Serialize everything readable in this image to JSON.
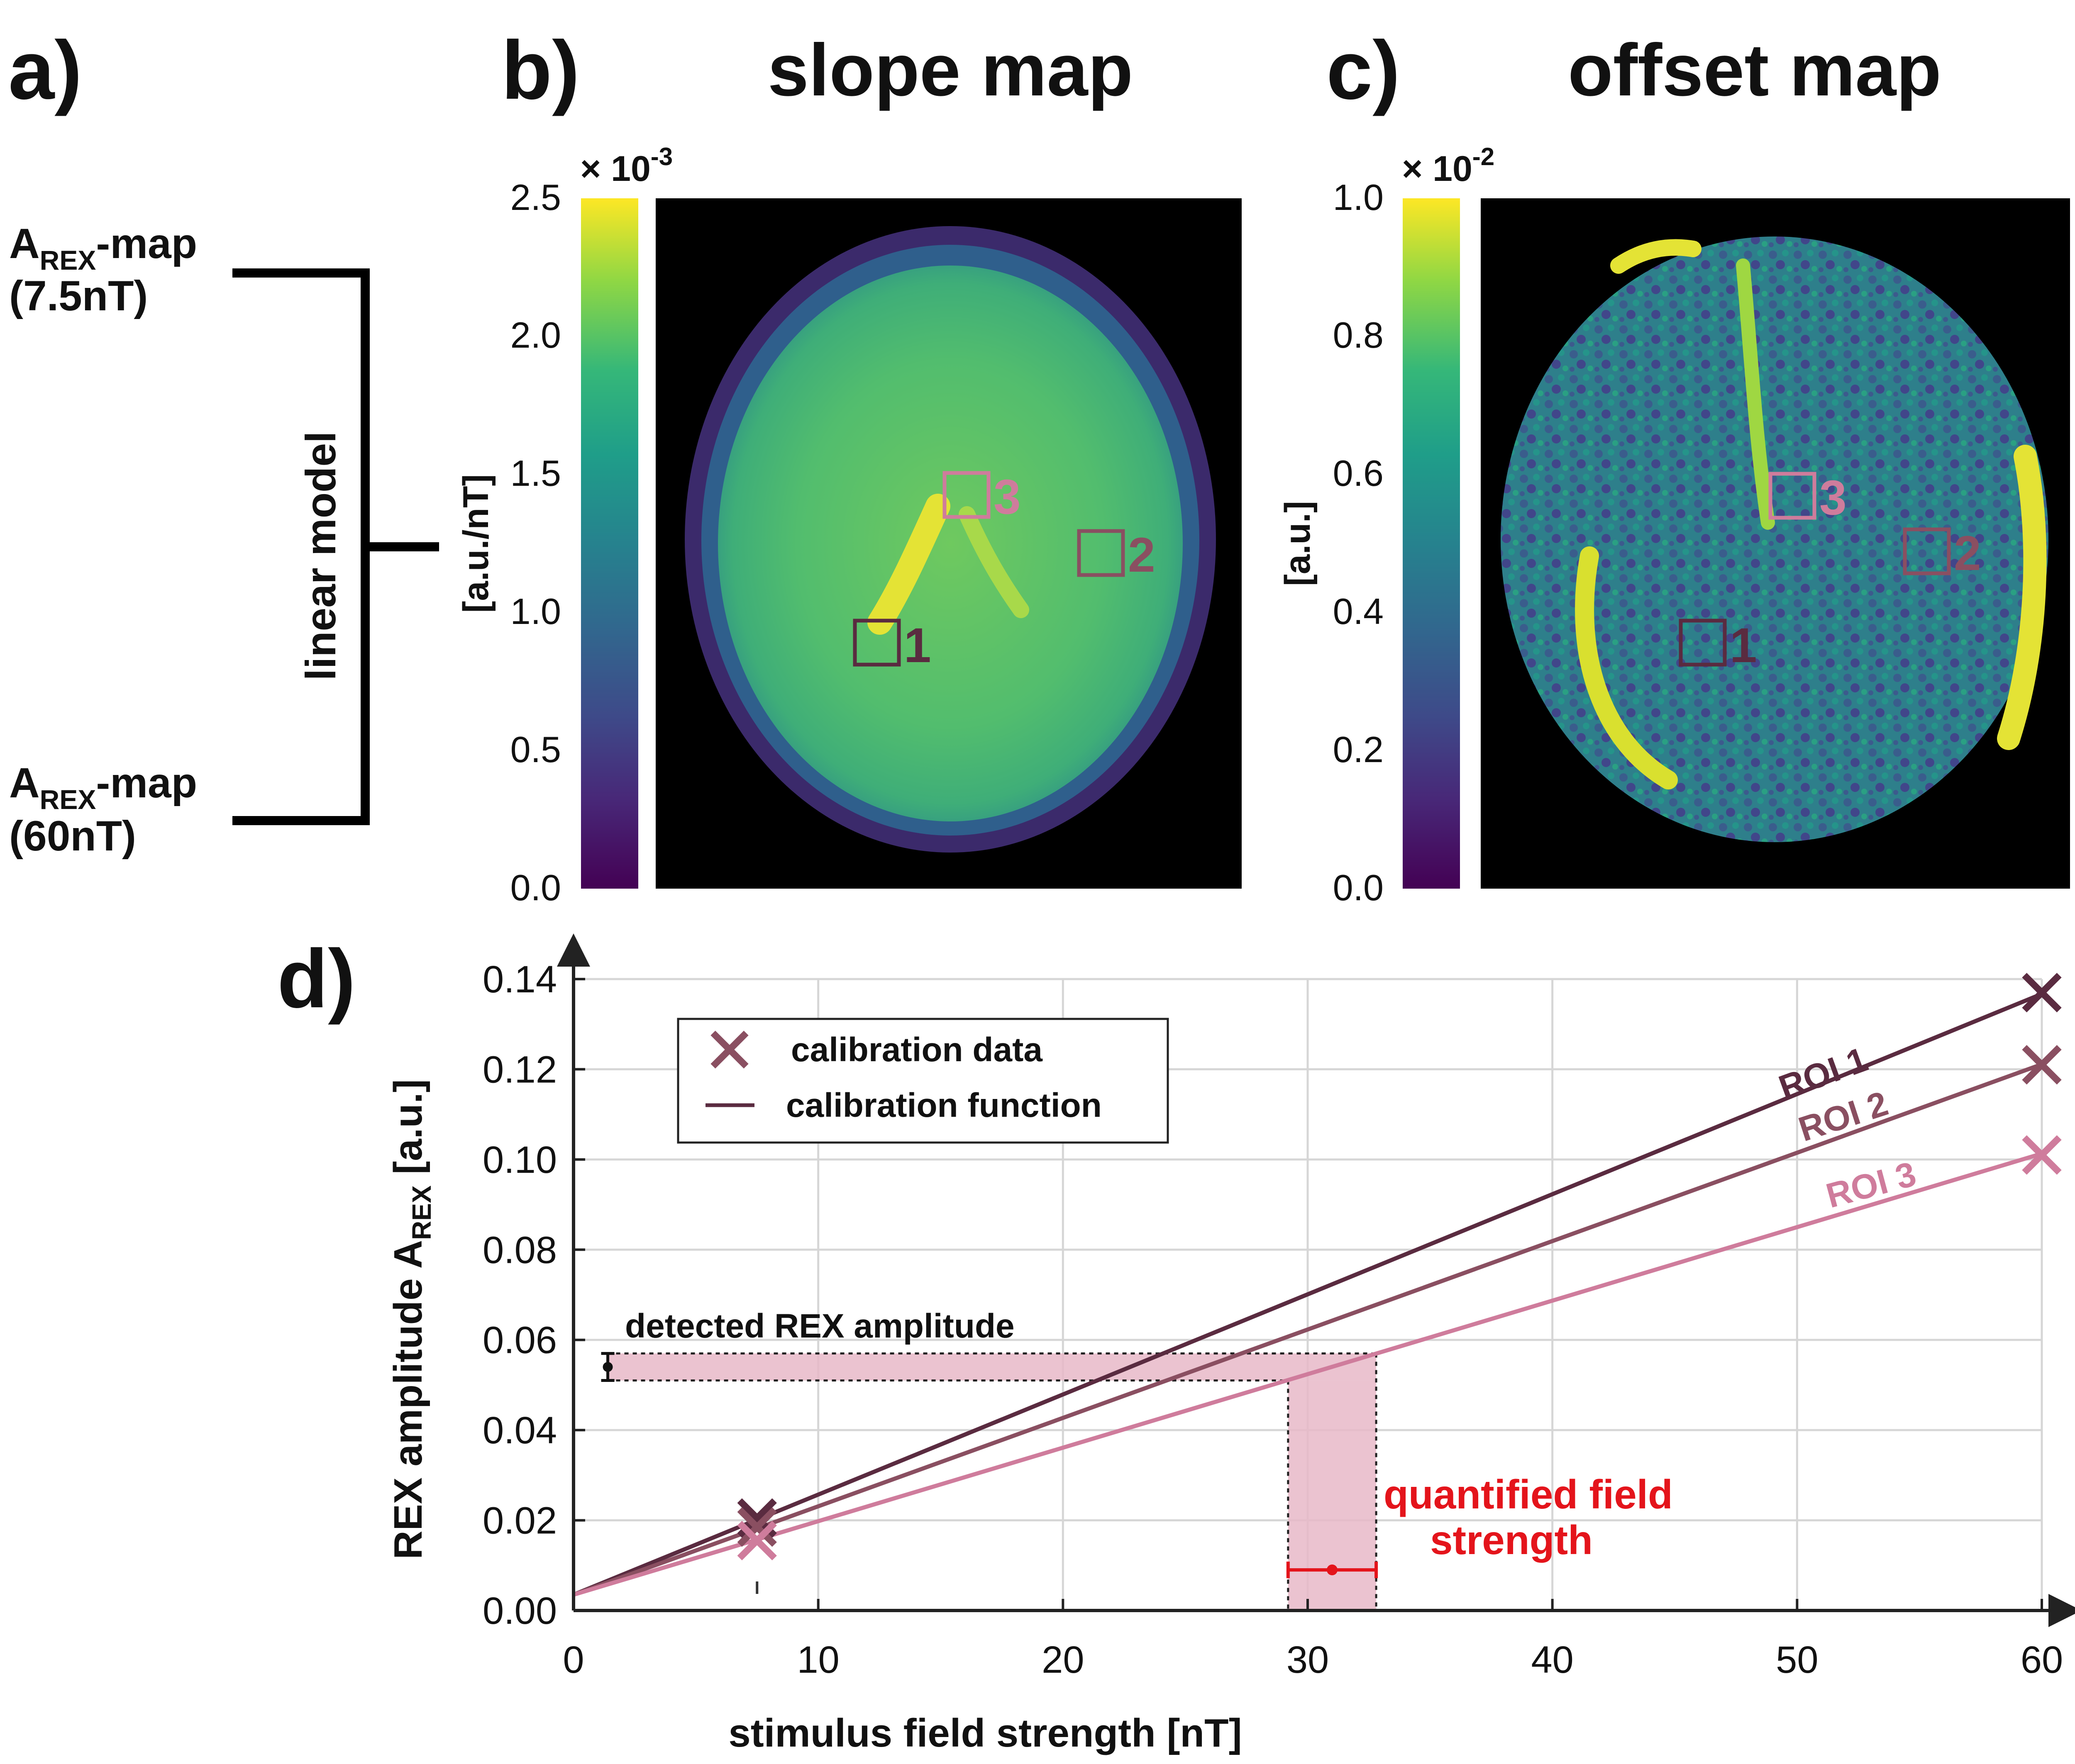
{
  "colors": {
    "roi1": "#5a2b40",
    "roi2": "#8a4f61",
    "roi3": "#cf7c9c",
    "highlight": "#e8b8c8",
    "quant": "#e4141b"
  },
  "panel_a": {
    "letter": "a)",
    "top_map": {
      "main": "A",
      "sub": "REX",
      "suffix": "-map",
      "field": "(7.5nT)"
    },
    "bottom_map": {
      "main": "A",
      "sub": "REX",
      "suffix": "-map",
      "field": "(60nT)"
    },
    "model_label": "linear model"
  },
  "panel_b": {
    "letter": "b)",
    "title": "slope map",
    "scale_prefix": "× 10",
    "scale_exp": "-3",
    "unit": "[a.u./nT]",
    "ticks": [
      "0.0",
      "0.5",
      "1.0",
      "1.5",
      "2.0",
      "2.5"
    ],
    "rois": [
      "1",
      "2",
      "3"
    ]
  },
  "panel_c": {
    "letter": "c)",
    "title": "offset map",
    "scale_prefix": "× 10",
    "scale_exp": "-2",
    "unit": "[a.u.]",
    "ticks": [
      "0.0",
      "0.2",
      "0.4",
      "0.6",
      "0.8",
      "1.0"
    ],
    "rois": [
      "1",
      "2",
      "3"
    ]
  },
  "panel_d": {
    "letter": "d)",
    "legend": {
      "data_label": "calibration data",
      "function_label": "calibration function"
    },
    "annotations": {
      "detected": "detected REX amplitude",
      "quantified_line1": "quantified field",
      "quantified_line2": "strength"
    }
  },
  "chart_data": {
    "type": "line",
    "title": "",
    "xlabel": "stimulus field strength [nT]",
    "ylabel": {
      "prefix": "REX amplitude A",
      "sub": "REX",
      "suffix": " [a.u.]"
    },
    "xlim": [
      0,
      60
    ],
    "ylim": [
      0,
      0.14
    ],
    "xticks": [
      0,
      10,
      20,
      30,
      40,
      50,
      60
    ],
    "yticks": [
      0.0,
      0.02,
      0.04,
      0.06,
      0.08,
      0.1,
      0.12,
      0.14
    ],
    "xticklabels": [
      "0",
      "10",
      "20",
      "30",
      "40",
      "50",
      "60"
    ],
    "yticklabels": [
      "0.00",
      "0.02",
      "0.04",
      "0.06",
      "0.08",
      "0.10",
      "0.12",
      "0.14"
    ],
    "grid": true,
    "series": [
      {
        "name": "ROI 1",
        "intercept": 0.0035,
        "slope": 0.00222,
        "calibration_points": [
          [
            7.5,
            0.0205
          ],
          [
            60,
            0.137
          ]
        ]
      },
      {
        "name": "ROI 2",
        "intercept": 0.0035,
        "slope": 0.00196,
        "calibration_points": [
          [
            7.5,
            0.0185
          ],
          [
            60,
            0.121
          ]
        ]
      },
      {
        "name": "ROI 3",
        "intercept": 0.0035,
        "slope": 0.00163,
        "calibration_points": [
          [
            7.5,
            0.0155
          ],
          [
            60,
            0.101
          ]
        ]
      }
    ],
    "detected_amplitude": {
      "value": 0.054,
      "lower": 0.051,
      "upper": 0.057,
      "x": 1.4
    },
    "quantified_field": {
      "value": 31,
      "lower": 29.2,
      "upper": 32.8,
      "marker_y": 0.009
    },
    "calibration_tick_x": 7.5
  }
}
